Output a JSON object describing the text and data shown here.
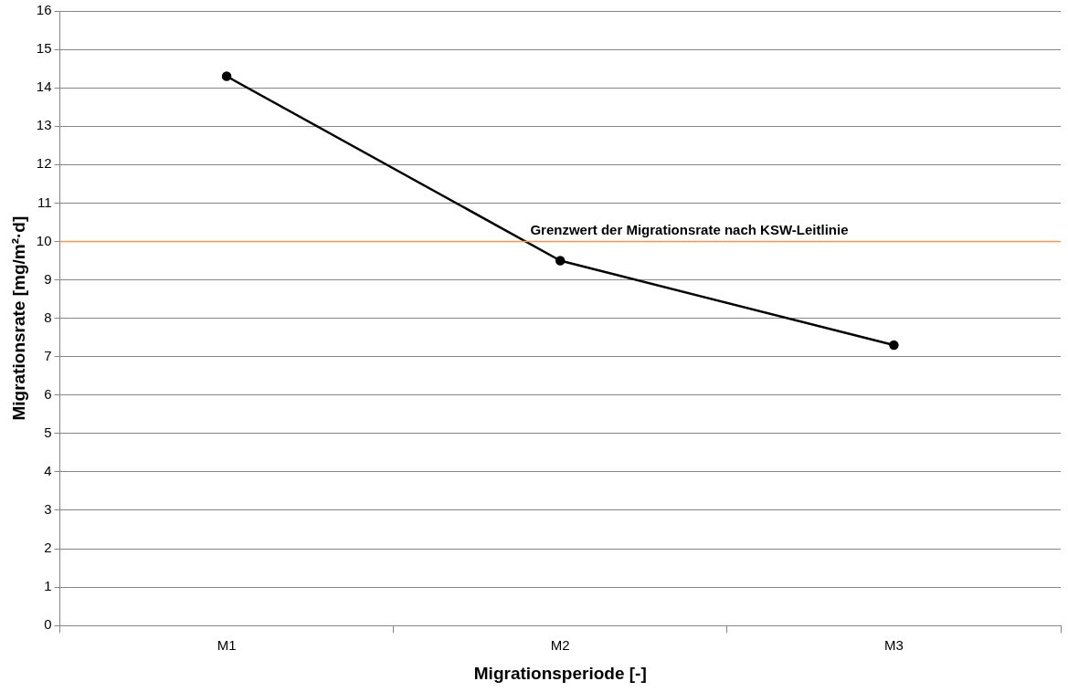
{
  "chart_data": {
    "type": "line",
    "xlabel": "Migrationsperiode [-]",
    "ylabel": "Migrationsrate [mg/m²·d]",
    "categories": [
      "M1",
      "M2",
      "M3"
    ],
    "series": [
      {
        "color": "#000000",
        "values": [
          14.3,
          9.5,
          7.3
        ]
      }
    ],
    "ylim": [
      0,
      16
    ],
    "yticks": [
      0,
      1,
      2,
      3,
      4,
      5,
      6,
      7,
      8,
      9,
      10,
      11,
      12,
      13,
      14,
      15,
      16
    ],
    "ref_lines": [
      {
        "axis": "y",
        "value": 10,
        "label": "Grenzwert der Migrationsrate nach KSW-Leitlinie",
        "color": "#f79646"
      }
    ],
    "grid": "y",
    "legend": false,
    "marker": "circle",
    "line_style": "solid"
  }
}
